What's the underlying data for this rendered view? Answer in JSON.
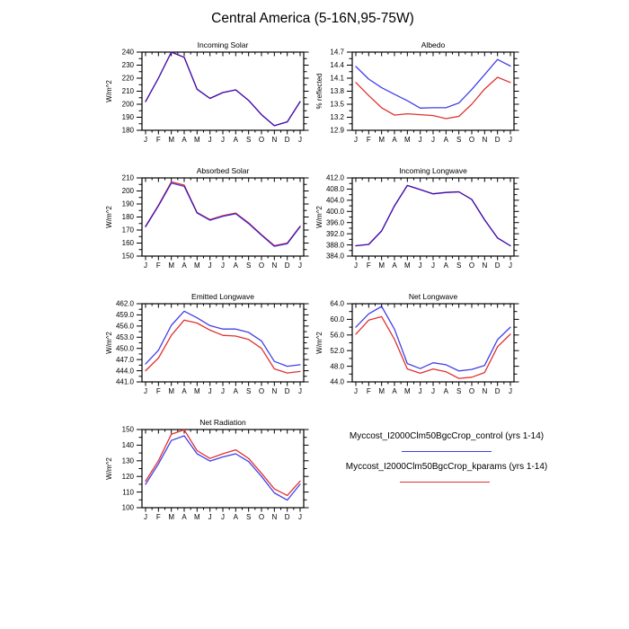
{
  "title": "Central America (5-16N,95-75W)",
  "colors": {
    "control": "#0000e0",
    "kparams": "#e03232"
  },
  "months": [
    "J",
    "F",
    "M",
    "A",
    "M",
    "J",
    "J",
    "A",
    "S",
    "O",
    "N",
    "D",
    "J"
  ],
  "chart_data": [
    {
      "type": "line",
      "title": "Incoming Solar",
      "ylabel": "W/m^2",
      "ylim": [
        180,
        240
      ],
      "ytick_step": 10,
      "ytick_decimals": 0,
      "series": [
        {
          "name": "control",
          "values": [
            202,
            220,
            240,
            236,
            211.5,
            204.5,
            209,
            211,
            203,
            192,
            183.5,
            186.5,
            202
          ]
        },
        {
          "name": "kparams",
          "values": [
            202,
            220,
            240,
            236,
            211.5,
            204.5,
            209,
            211,
            203,
            192,
            183.5,
            186.5,
            202
          ]
        }
      ]
    },
    {
      "type": "line",
      "title": "Albedo",
      "ylabel": "% reflected",
      "ylim": [
        12.9,
        14.7
      ],
      "ytick_step": 0.3,
      "ytick_decimals": 1,
      "series": [
        {
          "name": "control",
          "values": [
            14.37,
            14.08,
            13.88,
            13.73,
            13.58,
            13.41,
            13.42,
            13.42,
            13.53,
            13.84,
            14.18,
            14.53,
            14.38
          ]
        },
        {
          "name": "kparams",
          "values": [
            14.0,
            13.7,
            13.42,
            13.25,
            13.28,
            13.26,
            13.24,
            13.17,
            13.22,
            13.5,
            13.85,
            14.12,
            14.0
          ]
        }
      ]
    },
    {
      "type": "line",
      "title": "Absorbed Solar",
      "ylabel": "W/m^2",
      "ylim": [
        150,
        210
      ],
      "ytick_step": 10,
      "ytick_decimals": 0,
      "series": [
        {
          "name": "control",
          "values": [
            172.5,
            188.5,
            206,
            203.5,
            183,
            177.5,
            180.5,
            182.5,
            175,
            166,
            157.5,
            159.5,
            172.5
          ]
        },
        {
          "name": "kparams",
          "values": [
            173,
            189,
            207,
            204.5,
            183.5,
            178,
            181,
            183,
            175.5,
            166.5,
            158,
            160,
            173
          ]
        }
      ]
    },
    {
      "type": "line",
      "title": "Incoming Longwave",
      "ylabel": "W/m^2",
      "ylim": [
        384.0,
        412.0
      ],
      "ytick_step": 4,
      "ytick_decimals": 1,
      "series": [
        {
          "name": "control",
          "values": [
            387.7,
            388.2,
            393,
            402,
            409.3,
            407.8,
            406.3,
            406.8,
            407,
            404.3,
            397,
            390.5,
            387.7
          ]
        },
        {
          "name": "kparams",
          "values": [
            387.7,
            388.2,
            393,
            402,
            409.3,
            407.8,
            406.3,
            406.8,
            407,
            404.3,
            397,
            390.5,
            387.7
          ]
        }
      ]
    },
    {
      "type": "line",
      "title": "Emitted Longwave",
      "ylabel": "W/m^2",
      "ylim": [
        441.0,
        462.0
      ],
      "ytick_step": 3,
      "ytick_decimals": 1,
      "series": [
        {
          "name": "control",
          "values": [
            445.8,
            449.5,
            456.2,
            460.0,
            458.2,
            456.1,
            455.2,
            455.2,
            454.3,
            452.0,
            446.5,
            445.2,
            445.6
          ]
        },
        {
          "name": "kparams",
          "values": [
            444.0,
            447.4,
            453.5,
            457.6,
            456.8,
            454.9,
            453.5,
            453.3,
            452.4,
            450.0,
            444.5,
            443.4,
            443.8
          ]
        }
      ]
    },
    {
      "type": "line",
      "title": "Net Longwave",
      "ylabel": "W/m^2",
      "ylim": [
        44.0,
        64.0
      ],
      "ytick_step": 4,
      "ytick_decimals": 1,
      "series": [
        {
          "name": "control",
          "values": [
            58.0,
            61.4,
            63.3,
            57.5,
            48.7,
            47.4,
            48.9,
            48.4,
            46.8,
            47.2,
            48.2,
            54.8,
            58.0
          ]
        },
        {
          "name": "kparams",
          "values": [
            56.2,
            59.8,
            60.7,
            54.9,
            47.3,
            46.2,
            47.3,
            46.6,
            44.9,
            45.2,
            46.4,
            53.0,
            56.2
          ]
        }
      ]
    },
    {
      "type": "line",
      "title": "Net Radiation",
      "ylabel": "W/m^2",
      "ylim": [
        100,
        150
      ],
      "ytick_step": 10,
      "ytick_decimals": 0,
      "series": [
        {
          "name": "control",
          "values": [
            115,
            128,
            143,
            146,
            134.5,
            129.8,
            132.5,
            134.5,
            129.5,
            120,
            109.5,
            104.8,
            115
          ]
        },
        {
          "name": "kparams",
          "values": [
            117,
            130,
            147,
            149.8,
            136.5,
            131.5,
            134.5,
            137,
            131.5,
            122,
            112,
            107.8,
            117
          ]
        }
      ]
    }
  ],
  "legend": {
    "entries": [
      {
        "label": "Myccost_I2000Clm50BgcCrop_control (yrs 1-14)",
        "series": "control"
      },
      {
        "label": "Myccost_I2000Clm50BgcCrop_kparams (yrs 1-14)",
        "series": "kparams"
      }
    ]
  }
}
